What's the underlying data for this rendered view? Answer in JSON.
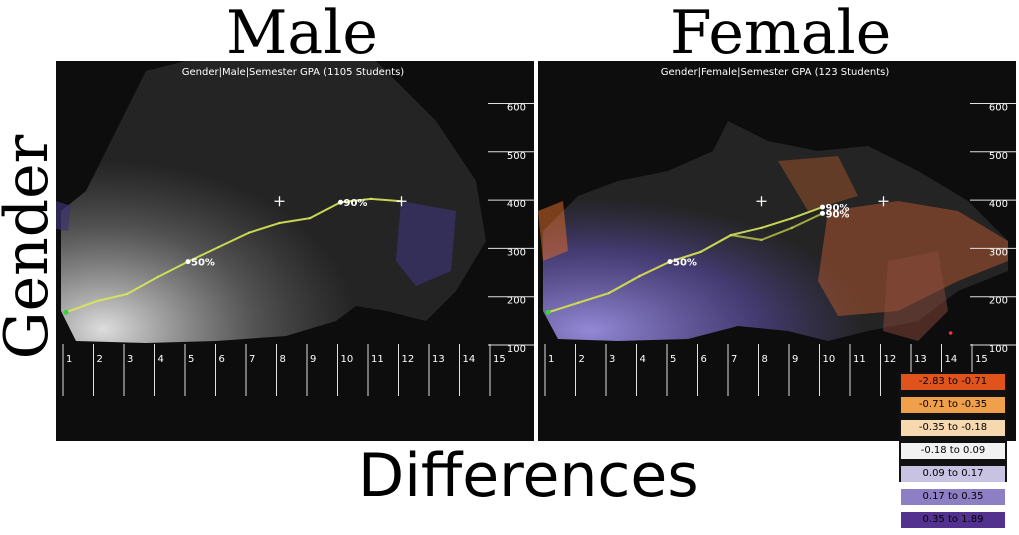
{
  "labels": {
    "male_title": "Male",
    "female_title": "Female",
    "side_label": "Gender",
    "bottom_label": "Differences"
  },
  "colors": {
    "panel_bg": "#0d0d0d",
    "line": "#d8e85a",
    "text": "#ffffff"
  },
  "legend": [
    {
      "label": "-2.83 to -0.71",
      "color": "#e0531c",
      "text_color": "#000000"
    },
    {
      "label": "-0.71 to -0.35",
      "color": "#f0a04a",
      "text_color": "#000000"
    },
    {
      "label": "-0.35 to -0.18",
      "color": "#f7d9b0",
      "text_color": "#000000"
    },
    {
      "label": "-0.18 to 0.09",
      "color": "#f2f2f2",
      "text_color": "#000000"
    },
    {
      "label": "0.09 to 0.17",
      "color": "#c9c3e3",
      "text_color": "#000000"
    },
    {
      "label": "0.17 to 0.35",
      "color": "#8c7fc4",
      "text_color": "#000000"
    },
    {
      "label": "0.35 to 1.89",
      "color": "#52318f",
      "text_color": "#000000"
    }
  ],
  "chart_data": [
    {
      "type": "line",
      "title": "Gender|Male|Semester GPA (1105 Students)",
      "x": [
        1,
        2,
        3,
        4,
        5,
        6,
        7,
        8,
        9,
        10,
        11,
        12
      ],
      "xticks": [
        "1",
        "2",
        "3",
        "4",
        "5",
        "6",
        "7",
        "8",
        "9",
        "10",
        "11",
        "12",
        "13",
        "14",
        "15"
      ],
      "yticks": [
        "100",
        "200",
        "300",
        "400",
        "500",
        "600"
      ],
      "xlim": [
        1,
        15
      ],
      "ylim": [
        100,
        650
      ],
      "series": [
        {
          "values": [
            180,
            203,
            218,
            253,
            285,
            315,
            345,
            365,
            375,
            408,
            415,
            410
          ]
        }
      ],
      "markers": [
        {
          "label": "50%",
          "x": 5,
          "y": 285
        },
        {
          "label": "90%",
          "x": 10,
          "y": 408
        }
      ],
      "crosses": [
        {
          "x": 8,
          "y": 410
        },
        {
          "x": 12,
          "y": 410
        }
      ]
    },
    {
      "type": "line",
      "title": "Gender|Female|Semester GPA (123 Students)",
      "x": [
        1,
        2,
        3,
        4,
        5,
        6,
        7,
        8,
        9,
        10
      ],
      "xticks": [
        "1",
        "2",
        "3",
        "4",
        "5",
        "6",
        "7",
        "8",
        "9",
        "10",
        "11",
        "12",
        "13",
        "14",
        "15"
      ],
      "yticks": [
        "100",
        "200",
        "300",
        "400",
        "500",
        "600"
      ],
      "xlim": [
        1,
        15
      ],
      "ylim": [
        100,
        650
      ],
      "series": [
        {
          "values": [
            180,
            200,
            220,
            255,
            285,
            305,
            340,
            355,
            375,
            398
          ]
        },
        {
          "values": [
            180,
            200,
            220,
            255,
            285,
            305,
            340,
            330,
            355,
            385
          ]
        }
      ],
      "markers": [
        {
          "label": "50%",
          "x": 5,
          "y": 285
        },
        {
          "label": "90%",
          "x": 10,
          "y": 398
        },
        {
          "label": "90%",
          "x": 10,
          "y": 385
        }
      ],
      "crosses": [
        {
          "x": 8,
          "y": 410
        },
        {
          "x": 12,
          "y": 410
        }
      ]
    }
  ]
}
